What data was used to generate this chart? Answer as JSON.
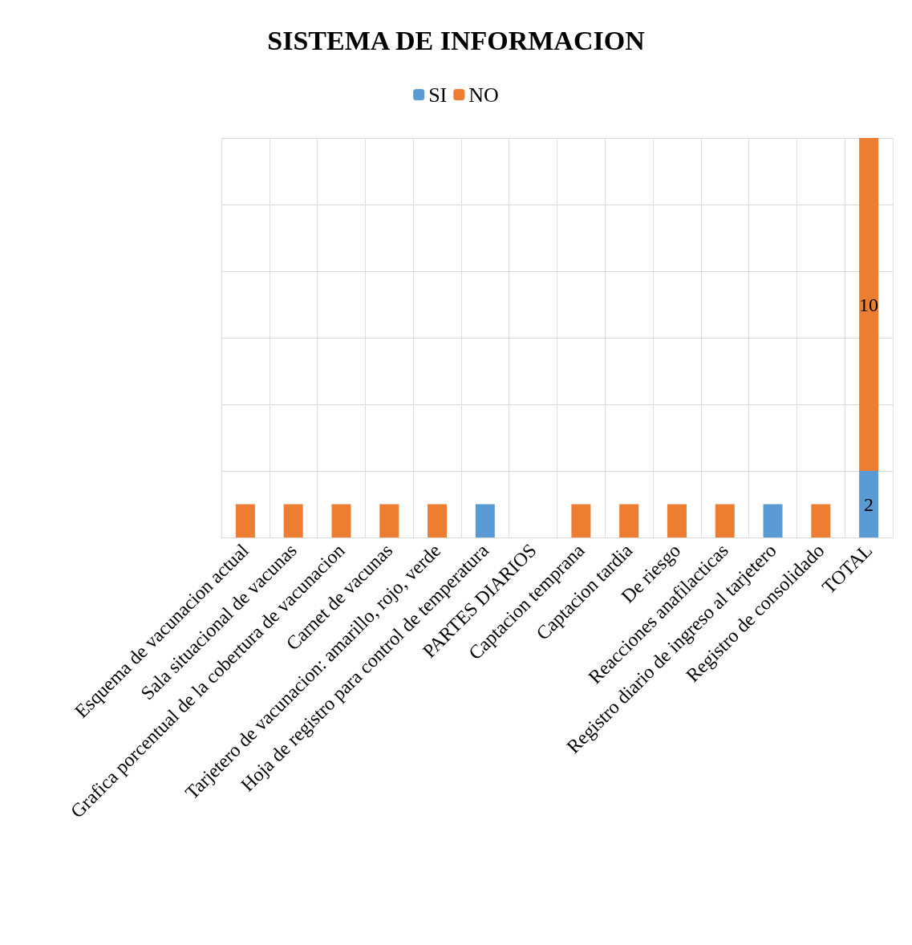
{
  "chart_data": {
    "type": "bar",
    "title": "SISTEMA DE INFORMACION",
    "categories": [
      "Esquema de vacunacion actual",
      "Sala situacional de vacunas",
      "Grafica porcentual de la cobertura de vacunacion",
      "Carnet de vacunas",
      "Tarjetero de vacunacion: amarillo, rojo, verde",
      "Hoja de registro para control de temperatura",
      "PARTES DIARIOS",
      "Captacion temprana",
      "Captacion tardia",
      "De riesgo",
      "Reacciones anafilacticas",
      "Registro diario de ingreso al tarjetero",
      "Registro de consolidado",
      "TOTAL"
    ],
    "series": [
      {
        "name": "SI",
        "color": "#5b9bd5",
        "values": [
          null,
          null,
          null,
          null,
          null,
          1,
          null,
          null,
          null,
          null,
          null,
          1,
          null,
          2
        ],
        "value_labels": [
          null,
          null,
          null,
          null,
          null,
          null,
          null,
          null,
          null,
          null,
          null,
          null,
          null,
          "2"
        ]
      },
      {
        "name": "NO",
        "color": "#ed7d31",
        "values": [
          1,
          1,
          1,
          1,
          1,
          null,
          null,
          1,
          1,
          1,
          1,
          null,
          1,
          10
        ],
        "value_labels": [
          null,
          null,
          null,
          null,
          null,
          null,
          null,
          null,
          null,
          null,
          null,
          null,
          null,
          "10"
        ]
      }
    ],
    "stacked": true,
    "grid": true,
    "legend": "top",
    "tick_labels": "x"
  }
}
